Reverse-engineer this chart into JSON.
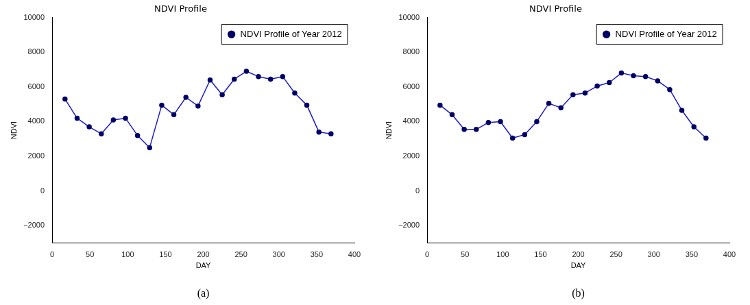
{
  "chart_data": [
    {
      "type": "line",
      "title": "NDVI Profile",
      "xlabel": "DAY",
      "ylabel": "NDVI",
      "x": [
        17,
        33,
        49,
        65,
        81,
        97,
        113,
        129,
        145,
        161,
        177,
        193,
        209,
        225,
        241,
        257,
        273,
        289,
        305,
        321,
        337,
        353,
        369
      ],
      "series": [
        {
          "name": "NDVI Profile of Year 2012",
          "color": "#1a1acc",
          "values": [
            5300,
            4200,
            3700,
            3300,
            4100,
            4200,
            3200,
            2500,
            4950,
            4400,
            5400,
            4900,
            6400,
            5550,
            6450,
            6900,
            6600,
            6450,
            6600,
            5650,
            4950,
            3400,
            3300
          ]
        }
      ],
      "xlim": [
        0,
        400
      ],
      "xticks": [
        0,
        50,
        100,
        150,
        200,
        250,
        300,
        350,
        400
      ],
      "ylim": [
        -3000,
        10000
      ],
      "yticks": [
        -2000,
        0,
        2000,
        4000,
        6000,
        8000,
        10000
      ],
      "grid": false,
      "legend": "top right",
      "marker": "circle",
      "line_style": "solid",
      "annotations": [
        "(a)"
      ]
    },
    {
      "type": "line",
      "title": "NDVI Profile",
      "xlabel": "DAY",
      "ylabel": "NDVI",
      "x": [
        17,
        33,
        49,
        65,
        81,
        97,
        113,
        129,
        145,
        161,
        177,
        193,
        209,
        225,
        241,
        257,
        273,
        289,
        305,
        321,
        337,
        353,
        369
      ],
      "series": [
        {
          "name": "NDVI Profile of Year 2012",
          "color": "#1a1acc",
          "values": [
            4950,
            4400,
            3550,
            3550,
            3950,
            4000,
            3050,
            3250,
            4000,
            5050,
            4800,
            5550,
            5650,
            6050,
            6250,
            6800,
            6650,
            6600,
            6350,
            5850,
            4650,
            3700,
            3050
          ]
        }
      ],
      "xlim": [
        0,
        400
      ],
      "xticks": [
        0,
        50,
        100,
        150,
        200,
        250,
        300,
        350,
        400
      ],
      "ylim": [
        -3000,
        10000
      ],
      "yticks": [
        -2000,
        0,
        2000,
        4000,
        6000,
        8000,
        10000
      ],
      "grid": false,
      "legend": "top right",
      "marker": "circle",
      "line_style": "solid",
      "annotations": [
        "(b)"
      ]
    }
  ]
}
